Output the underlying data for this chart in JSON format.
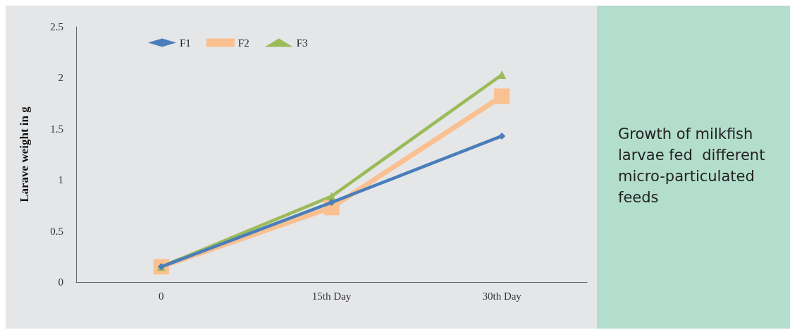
{
  "chart_data": {
    "type": "line",
    "title": "Growth of milkfish larvae fed  different micro-particulated feeds",
    "ylabel": "Larave weight in g",
    "categories": [
      "0",
      "15th Day",
      "30th Day"
    ],
    "series": [
      {
        "name": "F1",
        "color": "#4a7ebb",
        "marker": "diamond",
        "values": [
          0.15,
          0.78,
          1.43
        ]
      },
      {
        "name": "F2",
        "color": "#fac090",
        "marker": "square",
        "values": [
          0.15,
          0.73,
          1.82
        ]
      },
      {
        "name": "F3",
        "color": "#9bbb59",
        "marker": "triangle",
        "values": [
          0.15,
          0.84,
          2.03
        ]
      }
    ],
    "ylim": [
      0,
      2.5
    ],
    "yticks": [
      0,
      0.5,
      1,
      1.5,
      2,
      2.5
    ],
    "grid": false,
    "legend": "top left"
  }
}
